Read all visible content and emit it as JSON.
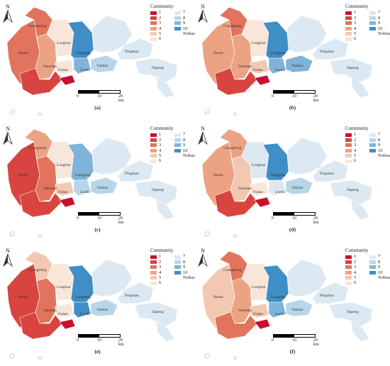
{
  "legend": {
    "title": "Community",
    "items": [
      {
        "label": "1",
        "color": "#c8102e"
      },
      {
        "label": "2",
        "color": "#d8443f"
      },
      {
        "label": "3",
        "color": "#e2735c"
      },
      {
        "label": "4",
        "color": "#eca383"
      },
      {
        "label": "5",
        "color": "#f3c8b0"
      },
      {
        "label": "6",
        "color": "#f8e6da"
      },
      {
        "label": "7",
        "color": "#dce9f2"
      },
      {
        "label": "8",
        "color": "#b9d5e9"
      },
      {
        "label": "9",
        "color": "#7fb3d8"
      },
      {
        "label": "10",
        "color": "#3f8ec6"
      },
      {
        "label": "Nobus",
        "color": "none"
      }
    ]
  },
  "compass_label": "N",
  "scalebar": {
    "ticks": [
      "0",
      "10",
      "20 km"
    ]
  },
  "district_labels": [
    "Guangming",
    "Baoan",
    "Longhua",
    "Nanshan",
    "Longgang",
    "Futian",
    "Luohu",
    "Yantian",
    "Pingshan",
    "Dapeng"
  ],
  "panels": [
    {
      "id": "a",
      "caption": "(a)",
      "colors": {
        "baoan": "#e2735c",
        "guangming": "#e2735c",
        "nanshan": "#eca383",
        "longhua": "#f8e6da",
        "futian": "#f8e6da",
        "luohu": "#7fb3d8",
        "longgang_w": "#3f8ec6",
        "longgang_e": "#dce9f2",
        "yantian": "#b9d5e9",
        "pingshan": "#dce9f2",
        "dapeng": "#dce9f2",
        "south": "#d8443f",
        "hotspot": "#c8102e"
      }
    },
    {
      "id": "b",
      "caption": "(b)",
      "colors": {
        "baoan": "#eca383",
        "guangming": "#e2735c",
        "nanshan": "#eca383",
        "longhua": "#f8e6da",
        "futian": "#f3c8b0",
        "luohu": "#7fb3d8",
        "longgang_w": "#3f8ec6",
        "longgang_e": "#dce9f2",
        "yantian": "#7fb3d8",
        "pingshan": "#dce9f2",
        "dapeng": "#dce9f2",
        "south": "#d8443f",
        "hotspot": "#c8102e"
      }
    },
    {
      "id": "c",
      "caption": "(c)",
      "colors": {
        "baoan": "#d8443f",
        "guangming": "#eca383",
        "nanshan": "#e2735c",
        "longhua": "#f8e6da",
        "futian": "#f3c8b0",
        "luohu": "#b9d5e9",
        "longgang_w": "#7fb3d8",
        "longgang_e": "#dce9f2",
        "yantian": "#b9d5e9",
        "pingshan": "#dce9f2",
        "dapeng": "#dce9f2",
        "south": "#d8443f",
        "hotspot": "#c8102e"
      }
    },
    {
      "id": "d",
      "caption": "(d)",
      "colors": {
        "baoan": "#eca383",
        "guangming": "#eca383",
        "nanshan": "#f3c8b0",
        "longhua": "#dce9f2",
        "futian": "#f8e6da",
        "luohu": "#dce9f2",
        "longgang_w": "#3f8ec6",
        "longgang_e": "#dce9f2",
        "yantian": "#b9d5e9",
        "pingshan": "#dce9f2",
        "dapeng": "#dce9f2",
        "south": "#d8443f",
        "hotspot": "#c8102e"
      }
    },
    {
      "id": "e",
      "caption": "(e)",
      "colors": {
        "baoan": "#d8443f",
        "guangming": "#f3c8b0",
        "nanshan": "#e2735c",
        "longhua": "#f8e6da",
        "futian": "#f8e6da",
        "luohu": "#3f8ec6",
        "longgang_w": "#3f8ec6",
        "longgang_e": "#dce9f2",
        "yantian": "#b9d5e9",
        "pingshan": "#dce9f2",
        "dapeng": "#dce9f2",
        "south": "#d8443f",
        "hotspot": "#c8102e"
      }
    },
    {
      "id": "f",
      "caption": "(f)",
      "colors": {
        "baoan": "#f3c8b0",
        "guangming": "#e2735c",
        "nanshan": "#eca383",
        "longhua": "#f8e6da",
        "futian": "#f3c8b0",
        "luohu": "#7fb3d8",
        "longgang_w": "#3f8ec6",
        "longgang_e": "#dce9f2",
        "yantian": "#b9d5e9",
        "pingshan": "#dce9f2",
        "dapeng": "#dce9f2",
        "south": "#e2735c",
        "hotspot": "#c8102e"
      }
    }
  ]
}
